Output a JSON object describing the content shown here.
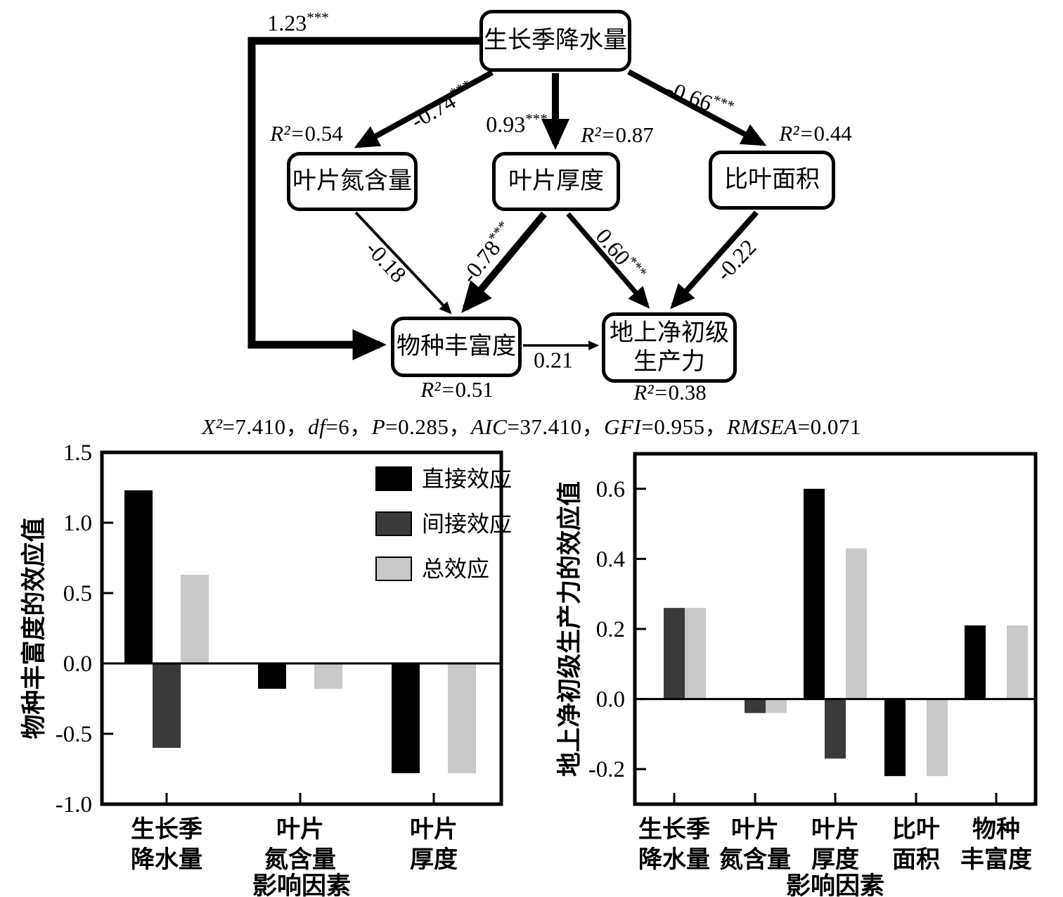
{
  "diagram": {
    "nodes": [
      {
        "id": "precip",
        "label": "生长季降水量",
        "r2": ""
      },
      {
        "id": "leaf_n",
        "label": "叶片氮含量",
        "r2": "0.54"
      },
      {
        "id": "thick",
        "label": "叶片厚度",
        "r2": "0.87"
      },
      {
        "id": "sla",
        "label": "比叶面积",
        "r2": "0.44"
      },
      {
        "id": "richness",
        "label": "物种丰富度",
        "r2": "0.51"
      },
      {
        "id": "anpp",
        "label": "地上净初级\n生产力",
        "r2": "0.38"
      }
    ],
    "r2_prefix": "R²=",
    "paths": [
      {
        "id": "precip_richness",
        "coef": "1.23",
        "stars": "***"
      },
      {
        "id": "precip_leafn",
        "coef": "-0.74",
        "stars": "***"
      },
      {
        "id": "precip_thick",
        "coef": "0.93",
        "stars": "***"
      },
      {
        "id": "precip_sla",
        "coef": "-0.66",
        "stars": "***"
      },
      {
        "id": "leafn_richness",
        "coef": "-0.18",
        "stars": ""
      },
      {
        "id": "thick_richness",
        "coef": "-0.78",
        "stars": "***"
      },
      {
        "id": "thick_anpp",
        "coef": "0.60",
        "stars": "***"
      },
      {
        "id": "sla_anpp",
        "coef": "-0.22",
        "stars": ""
      },
      {
        "id": "richness_anpp",
        "coef": "0.21",
        "stars": ""
      }
    ],
    "fit_stats": [
      {
        "name": "X²",
        "value": "7.410"
      },
      {
        "name": "df",
        "value": "6"
      },
      {
        "name": "P",
        "value": "0.285"
      },
      {
        "name": "AIC",
        "value": "37.410"
      },
      {
        "name": "GFI",
        "value": "0.955"
      },
      {
        "name": "RMSEA",
        "value": "0.071"
      }
    ],
    "separator": "，"
  },
  "colors": {
    "direct": "#000000",
    "indirect": "#3a3a3a",
    "total": "#c9c9c9"
  },
  "chart_data": [
    {
      "type": "bar",
      "title": "",
      "ylabel": "物种丰富度的效应值",
      "xlabel": "影响因素",
      "categories": [
        "生长季\n降水量",
        "叶片\n氮含量",
        "叶片\n厚度"
      ],
      "series": [
        {
          "name": "直接效应",
          "color": "#000000",
          "values": [
            1.23,
            -0.18,
            -0.78
          ]
        },
        {
          "name": "间接效应",
          "color": "#3a3a3a",
          "values": [
            -0.6,
            null,
            null
          ]
        },
        {
          "name": "总效应",
          "color": "#c9c9c9",
          "values": [
            0.63,
            -0.18,
            -0.78
          ]
        }
      ],
      "ylim": [
        -1.0,
        1.5
      ],
      "yticks": [
        1.5,
        1.0,
        0.5,
        0.0,
        -0.5,
        -1.0
      ],
      "grid": false,
      "legend": true,
      "legend_position": "top-right"
    },
    {
      "type": "bar",
      "title": "",
      "ylabel": "地上净初级生产力的效应值",
      "xlabel": "影响因素",
      "categories": [
        "生长季\n降水量",
        "叶片\n氮含量",
        "叶片\n厚度",
        "比叶\n面积",
        "物种\n丰富度"
      ],
      "series": [
        {
          "name": "直接效应",
          "color": "#000000",
          "values": [
            null,
            null,
            0.6,
            -0.22,
            0.21
          ]
        },
        {
          "name": "间接效应",
          "color": "#3a3a3a",
          "values": [
            0.26,
            -0.04,
            -0.17,
            null,
            null
          ]
        },
        {
          "name": "总效应",
          "color": "#c9c9c9",
          "values": [
            0.26,
            -0.04,
            0.43,
            -0.22,
            0.21
          ]
        }
      ],
      "ylim": [
        -0.3,
        0.7
      ],
      "yticks": [
        0.6,
        0.4,
        0.2,
        0.0,
        -0.2
      ],
      "grid": false,
      "legend": false
    }
  ]
}
